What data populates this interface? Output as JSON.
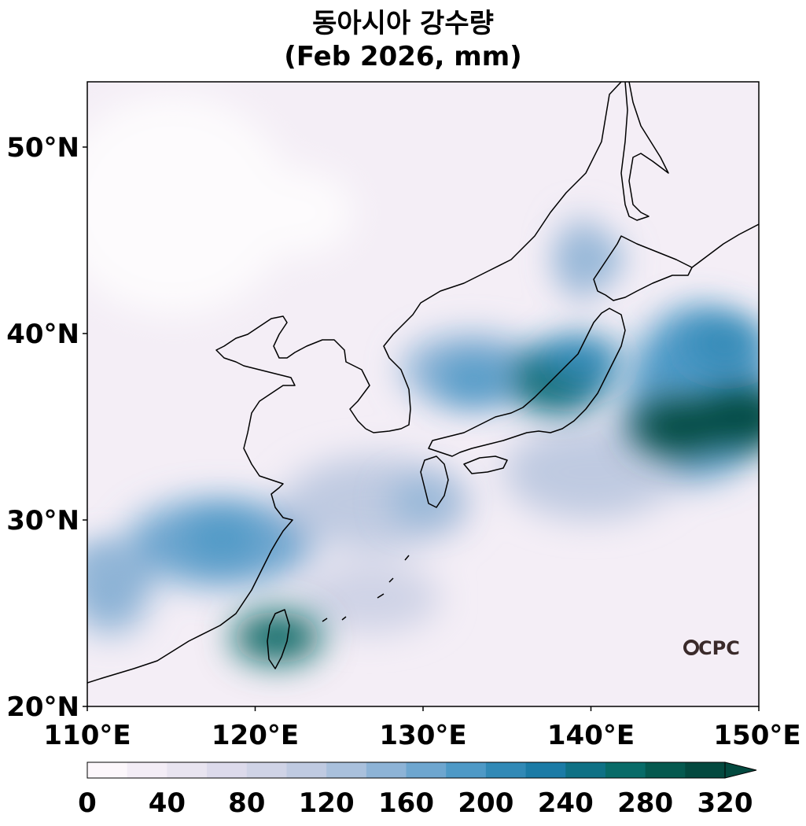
{
  "title": {
    "line1": "동아시아 강수량",
    "line2": "(Feb 2026, mm)"
  },
  "map": {
    "lon_range": [
      110,
      150
    ],
    "lat_range": [
      20,
      53.5
    ],
    "lat_ticks": [
      {
        "value": 50,
        "label": "50°N"
      },
      {
        "value": 40,
        "label": "40°N"
      },
      {
        "value": 30,
        "label": "30°N"
      },
      {
        "value": 20,
        "label": "20°N"
      }
    ],
    "lon_ticks": [
      {
        "value": 110,
        "label": "110°E"
      },
      {
        "value": 120,
        "label": "120°E"
      },
      {
        "value": 130,
        "label": "130°E"
      },
      {
        "value": 140,
        "label": "140°E"
      },
      {
        "value": 150,
        "label": "150°E"
      }
    ],
    "watermark": "CPC"
  },
  "colorbar": {
    "min": 0,
    "max": 320,
    "step": 20,
    "extend": "max",
    "tick_labels": [
      "0",
      "40",
      "80",
      "120",
      "160",
      "200",
      "240",
      "280",
      "320"
    ],
    "colors": [
      "#fcf7fb",
      "#f3edf6",
      "#e8e4f0",
      "#dcdaeb",
      "#cfd3e6",
      "#bfcae1",
      "#a9c0dc",
      "#8db3d6",
      "#6ea6cf",
      "#4e99c6",
      "#3189b6",
      "#1b7ba6",
      "#0f7185",
      "#086b68",
      "#05594f",
      "#03493f"
    ]
  },
  "precipitation_centers": [
    {
      "lon": 145.3,
      "lat": 35.0,
      "value": 300
    },
    {
      "lon": 149.0,
      "lat": 35.5,
      "value": 320
    },
    {
      "lon": 138.0,
      "lat": 37.5,
      "value": 260
    },
    {
      "lon": 139.5,
      "lat": 38.6,
      "value": 200
    },
    {
      "lon": 133.0,
      "lat": 37.5,
      "value": 180
    },
    {
      "lon": 140.0,
      "lat": 44.0,
      "value": 140
    },
    {
      "lon": 118.0,
      "lat": 29.0,
      "value": 190
    },
    {
      "lon": 111.0,
      "lat": 27.5,
      "value": 150
    },
    {
      "lon": 121.3,
      "lat": 23.7,
      "value": 260
    },
    {
      "lon": 148.0,
      "lat": 39.5,
      "value": 200
    },
    {
      "lon": 130.0,
      "lat": 31.0,
      "value": 140
    }
  ]
}
